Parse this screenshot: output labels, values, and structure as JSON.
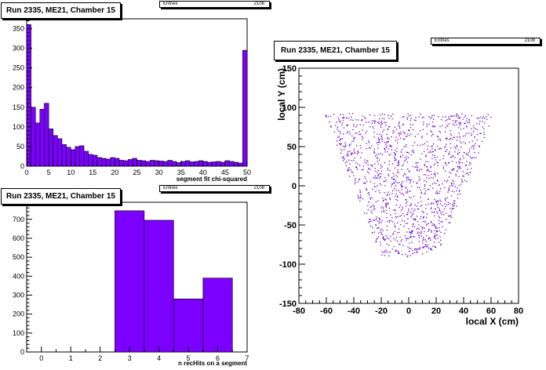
{
  "chart_data": [
    {
      "type": "bar",
      "title": "Run 2335, ME21, Chamber 15",
      "stats": {
        "label": "Entries",
        "value": "2108"
      },
      "xlabel": "segment fit chi-squared",
      "ylabel": "",
      "xlim": [
        0,
        50
      ],
      "ylim": [
        0,
        375
      ],
      "xticks": [
        0,
        5,
        10,
        15,
        20,
        25,
        30,
        35,
        40,
        45,
        50
      ],
      "yticks": [
        0,
        50,
        100,
        150,
        200,
        250,
        300,
        350
      ],
      "bin_width": 1,
      "bin_starts": [
        0,
        1,
        2,
        3,
        4,
        5,
        6,
        7,
        8,
        9,
        10,
        11,
        12,
        13,
        14,
        15,
        16,
        17,
        18,
        19,
        20,
        21,
        22,
        23,
        24,
        25,
        26,
        27,
        28,
        29,
        30,
        31,
        32,
        33,
        34,
        35,
        36,
        37,
        38,
        39,
        40,
        41,
        42,
        43,
        44,
        45,
        46,
        47,
        48,
        49
      ],
      "values": [
        360,
        150,
        110,
        145,
        160,
        95,
        78,
        70,
        55,
        48,
        42,
        50,
        52,
        38,
        30,
        28,
        22,
        20,
        18,
        22,
        20,
        15,
        14,
        17,
        20,
        15,
        14,
        12,
        15,
        14,
        13,
        12,
        15,
        12,
        9,
        12,
        14,
        11,
        12,
        14,
        12,
        10,
        11,
        12,
        10,
        14,
        12,
        10,
        8,
        295
      ],
      "color": "#7b00ff"
    },
    {
      "type": "bar",
      "title": "Run 2335, ME21, Chamber 15",
      "stats": {
        "label": "Entries",
        "value": "2108"
      },
      "xlabel": "n recHits on a segment",
      "ylabel": "",
      "xlim": [
        -0.5,
        7
      ],
      "ylim": [
        0,
        790
      ],
      "xticks": [
        0,
        1,
        2,
        3,
        4,
        5,
        6,
        7
      ],
      "yticks": [
        0,
        100,
        200,
        300,
        400,
        500,
        600,
        700
      ],
      "bin_width": 1,
      "bin_starts": [
        2.5,
        3.5,
        4.5,
        5.5
      ],
      "values": [
        745,
        695,
        280,
        390
      ],
      "color": "#7b00ff"
    },
    {
      "type": "scatter",
      "title": "Run 2335, ME21, Chamber 15",
      "stats": {
        "label": "Entries",
        "value": "2108"
      },
      "xlabel": "local X (cm)",
      "ylabel": "local Y (cm)",
      "xlim": [
        -80,
        80
      ],
      "ylim": [
        -150,
        150
      ],
      "xticks": [
        -80,
        -60,
        -40,
        -20,
        0,
        20,
        40,
        60,
        80
      ],
      "yticks": [
        -150,
        -100,
        -50,
        0,
        50,
        100,
        150
      ],
      "region": {
        "y_top": 93,
        "y_bottom": -90,
        "x_half_top": 62,
        "x_half_bottom": 20
      },
      "color": "#6600cc"
    }
  ]
}
